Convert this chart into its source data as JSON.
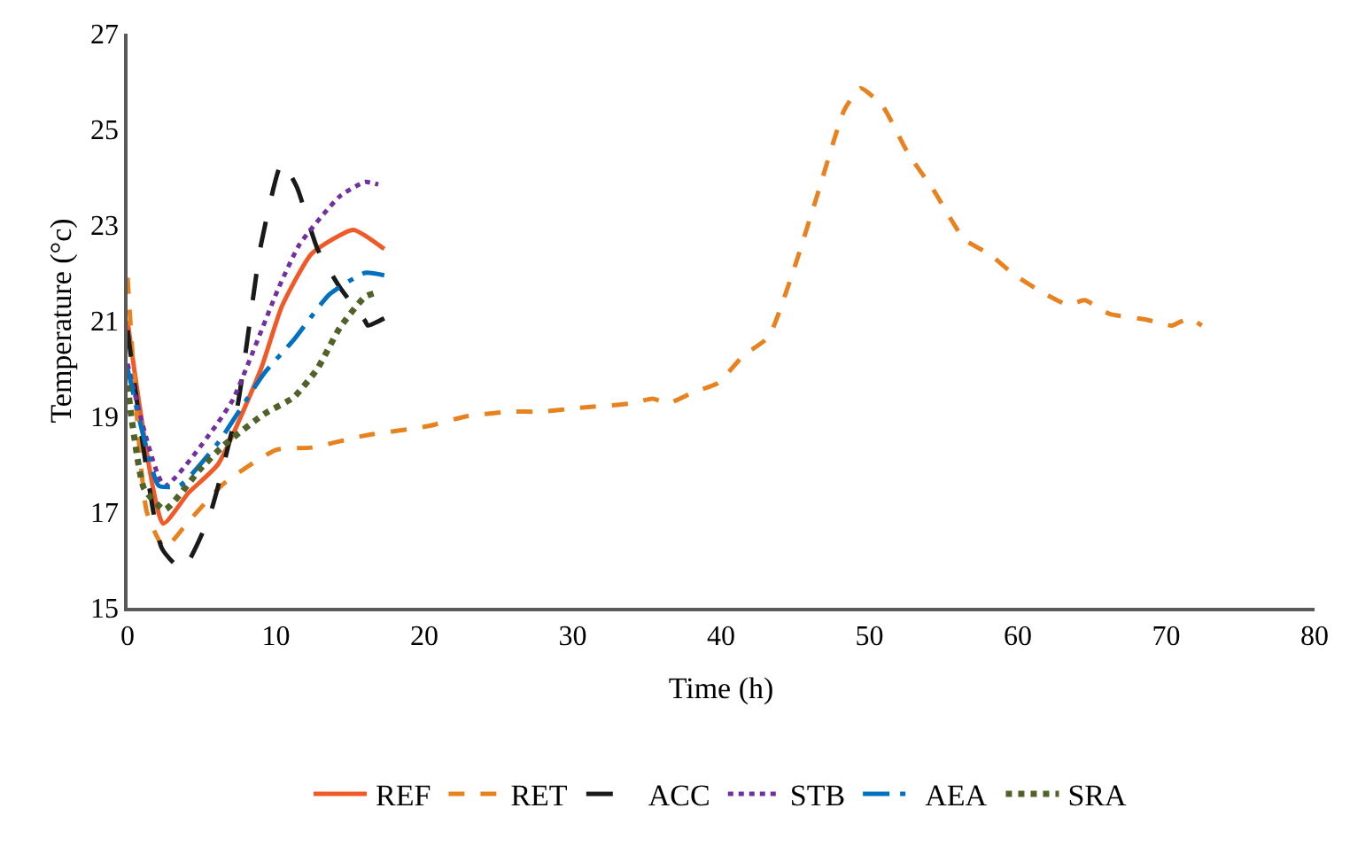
{
  "chart_data": {
    "type": "line",
    "xlabel": "Time (h)",
    "ylabel": "Temperature (°c)",
    "xlim": [
      0,
      80
    ],
    "xticks": [
      0,
      10,
      20,
      30,
      40,
      50,
      60,
      70,
      80
    ],
    "ylim": [
      15,
      27
    ],
    "yticks": [
      15,
      17,
      19,
      21,
      23,
      25,
      27
    ],
    "legend": "bottom",
    "marker": "none",
    "series": [
      {
        "name": "REF",
        "color": "#f05a28",
        "line_style": "solid",
        "x": [
          0,
          2.4,
          4.1,
          6.1,
          9.0,
          10.4,
          12.4,
          15.2,
          17.3
        ],
        "values": [
          21.0,
          16.76,
          17.4,
          18.0,
          20.0,
          21.3,
          22.4,
          22.9,
          22.5
        ]
      },
      {
        "name": "RET",
        "color": "#e8821e",
        "line_style": "dashed",
        "x": [
          0,
          1.3,
          2.5,
          4.1,
          6.5,
          10.0,
          12.4,
          16.0,
          20.3,
          22.8,
          25.8,
          27.9,
          30.5,
          33.9,
          35.4,
          36.4,
          38.1,
          39.8,
          41.5,
          43.2,
          44.9,
          46.6,
          48.3,
          49.4,
          50.9,
          52.6,
          54.3,
          56.4,
          58.1,
          59.8,
          61.9,
          63.4,
          64.5,
          66.2,
          68.7,
          70.4,
          71.5,
          72.4
        ],
        "values": [
          21.9,
          17.0,
          16.25,
          16.8,
          17.6,
          18.3,
          18.35,
          18.6,
          18.8,
          19.0,
          19.1,
          19.1,
          19.18,
          19.27,
          19.37,
          19.27,
          19.5,
          19.7,
          20.27,
          20.66,
          22.07,
          23.74,
          25.4,
          25.86,
          25.48,
          24.5,
          23.74,
          22.7,
          22.39,
          21.95,
          21.55,
          21.33,
          21.43,
          21.14,
          21.02,
          20.9,
          21.05,
          20.9
        ]
      },
      {
        "name": "ACC",
        "color": "#1a1a1a",
        "line_style": "longdash",
        "x": [
          0,
          2.3,
          3.7,
          5.5,
          7.4,
          9.0,
          10.4,
          11.4,
          12.8,
          14.3,
          16.0,
          16.2,
          17.3
        ],
        "values": [
          20.8,
          16.25,
          15.8,
          16.9,
          19.2,
          22.6,
          24.3,
          23.8,
          22.5,
          21.7,
          21.0,
          20.9,
          21.05
        ]
      },
      {
        "name": "STB",
        "color": "#7030a0",
        "line_style": "dotted",
        "x": [
          0,
          2.5,
          5.7,
          7.1,
          10.2,
          11.6,
          14.3,
          16.0,
          16.9
        ],
        "values": [
          20.1,
          17.55,
          18.7,
          19.35,
          21.7,
          22.6,
          23.6,
          23.9,
          23.85
        ]
      },
      {
        "name": "AEA",
        "color": "#0070c0",
        "line_style": "dashdot",
        "x": [
          0,
          1.3,
          2.1,
          3.5,
          6.1,
          9.2,
          11.2,
          13.6,
          16.0,
          17.3
        ],
        "values": [
          20.0,
          18.3,
          17.55,
          17.55,
          18.45,
          19.9,
          20.6,
          21.55,
          22.0,
          21.95
        ]
      },
      {
        "name": "SRA",
        "color": "#4f6228",
        "line_style": "dotted",
        "x": [
          0,
          0.3,
          1.1,
          2.5,
          4.9,
          6.5,
          9.2,
          11.2,
          12.8,
          14.3,
          16.0,
          16.9
        ],
        "values": [
          19.65,
          18.9,
          17.5,
          17.05,
          17.9,
          18.4,
          19.05,
          19.4,
          20.0,
          20.85,
          21.5,
          21.6
        ]
      }
    ]
  }
}
